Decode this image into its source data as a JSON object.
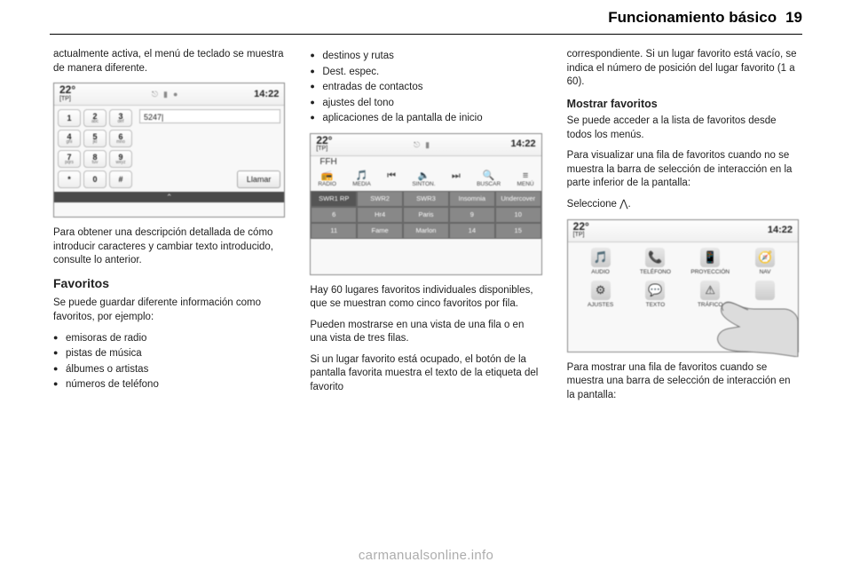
{
  "header": {
    "title": "Funcionamiento básico",
    "pageNumber": "19"
  },
  "watermark": "carmanualsonline.info",
  "col1": {
    "p1": "actualmente activa, el menú de teclado se muestra de manera diferente.",
    "shot": {
      "temp": "22°",
      "tp": "[TP]",
      "time": "14:22",
      "keys": [
        {
          "d": "1",
          "s": ""
        },
        {
          "d": "2",
          "s": "abc"
        },
        {
          "d": "3",
          "s": "def"
        },
        {
          "d": "4",
          "s": "ghi"
        },
        {
          "d": "5",
          "s": "jkl"
        },
        {
          "d": "6",
          "s": "mno"
        },
        {
          "d": "7",
          "s": "pqrs"
        },
        {
          "d": "8",
          "s": "tuv"
        },
        {
          "d": "9",
          "s": "wxyz"
        },
        {
          "d": "*",
          "s": ""
        },
        {
          "d": "0",
          "s": ""
        },
        {
          "d": "#",
          "s": ""
        }
      ],
      "displayNumber": "5247|",
      "callLabel": "Llamar",
      "drawer": "⌃"
    },
    "p2": "Para obtener una descripción detallada de cómo introducir caracteres y cambiar texto introducido, consulte lo anterior.",
    "h3": "Favoritos",
    "p3": "Se puede guardar diferente información como favoritos, por ejemplo:",
    "bullets": [
      "emisoras de radio",
      "pistas de música",
      "álbumes o artistas",
      "números de teléfono"
    ]
  },
  "col2": {
    "bullets": [
      "destinos y rutas",
      "Dest. espec.",
      "entradas de contactos",
      "ajustes del tono",
      "aplicaciones de la pantalla de inicio"
    ],
    "shot": {
      "temp": "22°",
      "tp": "[TP]",
      "time": "14:22",
      "ffh": "FFH",
      "iconRow": [
        {
          "g": "📻",
          "l": "RADIO"
        },
        {
          "g": "🎵",
          "l": "MEDIA"
        },
        {
          "g": "⏮",
          "l": ""
        },
        {
          "g": "🔈",
          "l": "SINTON."
        },
        {
          "g": "⏭",
          "l": ""
        },
        {
          "g": "🔍",
          "l": "BUSCAR"
        },
        {
          "g": "≡",
          "l": "MENÚ"
        }
      ],
      "presets": [
        [
          "SWR1 RP",
          "SWR2",
          "SWR3",
          "Insomnia",
          "Undercover"
        ],
        [
          "6",
          "Hr4",
          "Paris",
          "9",
          "10"
        ],
        [
          "11",
          "Fame",
          "Marlon",
          "14",
          "15"
        ]
      ]
    },
    "p1": "Hay 60 lugares favoritos individuales disponibles, que se muestran como cinco favoritos por fila.",
    "p2": "Pueden mostrarse en una vista de una fila o en una vista de tres filas.",
    "p3": "Si un lugar favorito está ocupado, el botón de la pantalla favorita muestra el texto de la etiqueta del favorito"
  },
  "col3": {
    "p1": "correspondiente. Si un lugar favorito está vacío, se indica el número de posición del lugar favorito (1 a 60).",
    "h4": "Mostrar favoritos",
    "p2": "Se puede acceder a la lista de favoritos desde todos los menús.",
    "p3": "Para visualizar una fila de favoritos cuando no se muestra la barra de selección de interacción en la parte inferior de la pantalla:",
    "p4": "Seleccione ⋀.",
    "shot": {
      "temp": "22°",
      "tp": "[TP]",
      "time": "14:22",
      "grid": [
        {
          "g": "🎵",
          "l": "AUDIO"
        },
        {
          "g": "📞",
          "l": "TELÉFONO"
        },
        {
          "g": "📱",
          "l": "PROYECCIÓN"
        },
        {
          "g": "🧭",
          "l": "NAV"
        },
        {
          "g": "⚙",
          "l": "AJUSTES"
        },
        {
          "g": "💬",
          "l": "TEXTO"
        },
        {
          "g": "⚠",
          "l": "TRÁFICO"
        },
        {
          "g": "",
          "l": ""
        }
      ]
    },
    "p5": "Para mostrar una fila de favoritos cuando se muestra una barra de selección de interacción en la pantalla:"
  }
}
